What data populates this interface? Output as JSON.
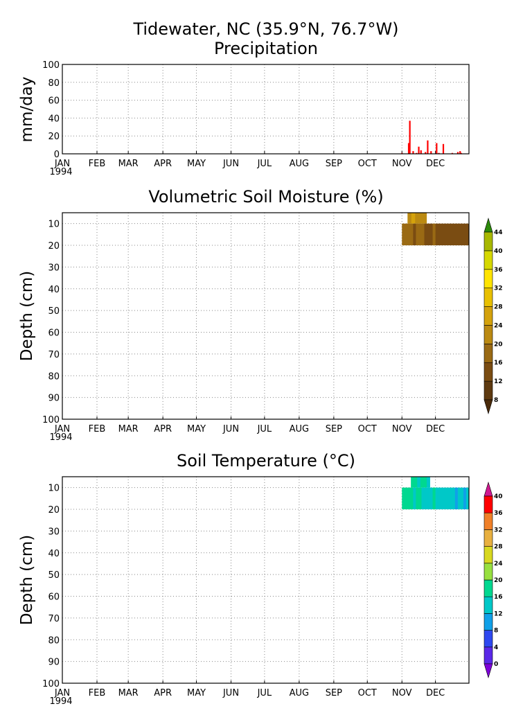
{
  "page": {
    "title_line1": "Tidewater, NC  (35.9°N, 76.7°W)"
  },
  "months": [
    "JAN",
    "FEB",
    "MAR",
    "APR",
    "MAY",
    "JUN",
    "JUL",
    "AUG",
    "SEP",
    "OCT",
    "NOV",
    "DEC"
  ],
  "year_label": "1994",
  "chart_data": [
    {
      "type": "bar",
      "title": "Precipitation",
      "ylabel": "mm/day",
      "xlabel": "",
      "ylim": [
        0,
        100
      ],
      "yticks": [
        0,
        20,
        40,
        60,
        80,
        100
      ],
      "x_unit": "day of year 1994",
      "xlim": [
        1,
        365
      ],
      "grid": true,
      "bar_color": "#ff0000",
      "x": [
        305,
        311,
        312,
        315,
        318,
        320,
        322,
        326,
        328,
        331,
        336,
        338,
        342,
        350,
        355,
        357,
        358
      ],
      "values": [
        1,
        12,
        37,
        3,
        1,
        8,
        4,
        2,
        15,
        3,
        12,
        1,
        11,
        1,
        2,
        3,
        1
      ]
    },
    {
      "type": "heatmap",
      "title": "Volumetric Soil Moisture (%)",
      "ylabel": "Depth (cm)",
      "xlabel": "",
      "ylim": [
        100,
        5
      ],
      "yticks": [
        10,
        20,
        30,
        40,
        50,
        60,
        70,
        80,
        90,
        100
      ],
      "xlim": [
        1,
        365
      ],
      "grid": true,
      "colorbar": {
        "levels": [
          8,
          12,
          16,
          20,
          24,
          28,
          32,
          36,
          40,
          44
        ],
        "colors": [
          "#4a2a0a",
          "#5e3a10",
          "#7a4c12",
          "#9a6a14",
          "#bb8a12",
          "#d4a20c",
          "#e8c000",
          "#ffe400",
          "#d6d800",
          "#a8b800",
          "#6e9a00",
          "#2c8a0a"
        ]
      },
      "layers": [
        {
          "depth_range": [
            5,
            10
          ],
          "x_range": [
            310,
            327
          ],
          "values": [
            22,
            24,
            23,
            22,
            21
          ]
        },
        {
          "depth_range": [
            10,
            20
          ],
          "x_range": [
            305,
            365
          ],
          "values": [
            16,
            17,
            18,
            17,
            15,
            16,
            17,
            16,
            14,
            15,
            15,
            16,
            15,
            14,
            14,
            15,
            14,
            13,
            14,
            14,
            13,
            14,
            13,
            14
          ]
        }
      ]
    },
    {
      "type": "heatmap",
      "title": "Soil Temperature (°C)",
      "ylabel": "Depth (cm)",
      "xlabel": "",
      "ylim": [
        100,
        5
      ],
      "yticks": [
        10,
        20,
        30,
        40,
        50,
        60,
        70,
        80,
        90,
        100
      ],
      "xlim": [
        1,
        365
      ],
      "grid": true,
      "colorbar": {
        "levels": [
          0,
          4,
          8,
          12,
          16,
          20,
          24,
          28,
          32,
          36,
          40
        ],
        "colors": [
          "#7d00d8",
          "#5a28e8",
          "#2e48f0",
          "#10a0e8",
          "#00c8c8",
          "#00d890",
          "#98e040",
          "#d8d820",
          "#e8b040",
          "#f08028",
          "#ff0000",
          "#d01890"
        ]
      },
      "layers": [
        {
          "depth_range": [
            5,
            10
          ],
          "x_range": [
            313,
            330
          ],
          "values": [
            16,
            16,
            15,
            16,
            16,
            15
          ]
        },
        {
          "depth_range": [
            10,
            20
          ],
          "x_range": [
            305,
            365
          ],
          "values": [
            16,
            16,
            16,
            16,
            15,
            16,
            16,
            15,
            15,
            15,
            12,
            16,
            13,
            13,
            12,
            12,
            14,
            13,
            12,
            11,
            13,
            12,
            11,
            12
          ]
        }
      ]
    }
  ]
}
